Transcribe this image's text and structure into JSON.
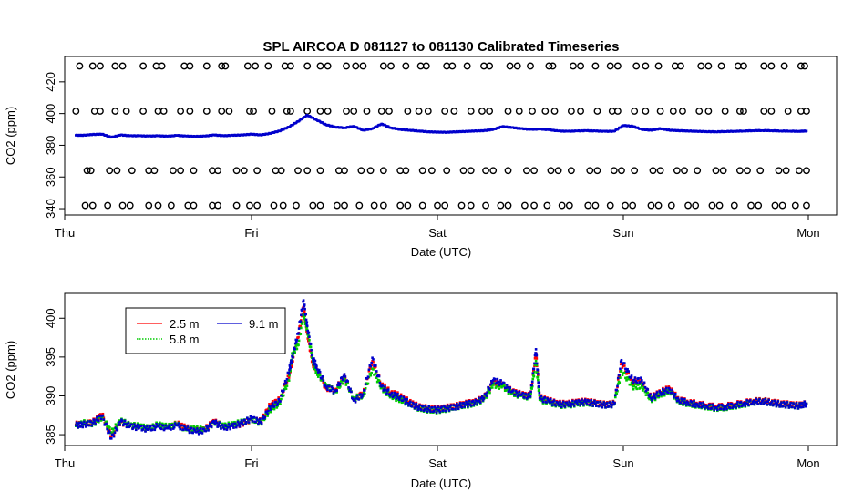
{
  "chart_data": [
    {
      "type": "scatter",
      "title": "SPL   AIRCOA  D    081127  to  081130   Calibrated Timeseries",
      "xlabel": "Date (UTC)",
      "ylabel": "CO2 (ppm)",
      "x_ticks": [
        "Thu",
        "Fri",
        "Sat",
        "Sun",
        "Mon"
      ],
      "y_ticks": [
        340,
        360,
        380,
        400,
        420
      ],
      "y_tick_labels": [
        "340",
        "360",
        "380",
        "400",
        "420"
      ],
      "xlim": [
        0,
        4.2
      ],
      "ylim": [
        336,
        436
      ],
      "grid": false,
      "series": [
        {
          "name": "",
          "color": "#0000cc",
          "x": [
            0.06,
            0.1,
            0.15,
            0.2,
            0.25,
            0.3,
            0.35,
            0.4,
            0.45,
            0.5,
            0.55,
            0.6,
            0.65,
            0.7,
            0.75,
            0.8,
            0.85,
            0.9,
            0.95,
            1.0,
            1.05,
            1.1,
            1.15,
            1.2,
            1.25,
            1.3,
            1.35,
            1.4,
            1.45,
            1.5,
            1.55,
            1.6,
            1.65,
            1.7,
            1.75,
            1.8,
            1.85,
            1.9,
            1.95,
            2.0,
            2.05,
            2.1,
            2.15,
            2.2,
            2.25,
            2.3,
            2.35,
            2.4,
            2.45,
            2.5,
            2.55,
            2.6,
            2.65,
            2.7,
            2.75,
            2.8,
            2.85,
            2.9,
            2.95,
            3.0,
            3.05,
            3.1,
            3.15,
            3.2,
            3.25,
            3.3,
            3.35,
            3.4,
            3.45,
            3.5,
            3.55,
            3.6,
            3.65,
            3.7,
            3.75,
            3.8,
            3.85,
            3.9,
            3.95,
            3.99
          ],
          "y": [
            386.3,
            386.3,
            386.8,
            387.0,
            385.0,
            386.5,
            386.0,
            386.0,
            385.8,
            386.0,
            385.7,
            386.2,
            385.8,
            385.6,
            385.8,
            386.5,
            386.0,
            386.3,
            386.5,
            387.0,
            386.5,
            387.5,
            389.0,
            391.5,
            395.0,
            399.0,
            396.0,
            393.0,
            391.5,
            391.0,
            392.0,
            389.5,
            390.5,
            393.5,
            391.0,
            390.0,
            389.5,
            389.0,
            388.5,
            388.3,
            388.2,
            388.5,
            388.7,
            389.0,
            389.2,
            390.0,
            391.8,
            391.2,
            390.5,
            390.0,
            390.2,
            389.8,
            389.0,
            388.8,
            389.0,
            389.2,
            389.0,
            388.8,
            388.8,
            392.5,
            392.0,
            390.0,
            389.5,
            390.5,
            389.5,
            389.2,
            389.0,
            388.8,
            388.6,
            388.5,
            388.7,
            388.8,
            389.0,
            389.2,
            389.3,
            389.2,
            389.0,
            388.9,
            388.8,
            389.0
          ]
        }
      ],
      "calibration_rows": [
        {
          "y": 430,
          "x": [
            0.08,
            0.15,
            0.19,
            0.27,
            0.31,
            0.42,
            0.49,
            0.52,
            0.64,
            0.67,
            0.76,
            0.84,
            0.86,
            0.98,
            1.02,
            1.09,
            1.18,
            1.21,
            1.3,
            1.37,
            1.41,
            1.51,
            1.56,
            1.6,
            1.71,
            1.75,
            1.83,
            1.91,
            1.94,
            2.05,
            2.08,
            2.16,
            2.25,
            2.28,
            2.39,
            2.43,
            2.5,
            2.6,
            2.62,
            2.73,
            2.77,
            2.85,
            2.93,
            2.97,
            3.07,
            3.12,
            3.19,
            3.28,
            3.31,
            3.42,
            3.46,
            3.53,
            3.62,
            3.65,
            3.76,
            3.8,
            3.87,
            3.96,
            3.98
          ]
        },
        {
          "y": 401.5,
          "x": [
            0.06,
            0.16,
            0.19,
            0.27,
            0.33,
            0.42,
            0.5,
            0.53,
            0.62,
            0.67,
            0.76,
            0.84,
            0.88,
            0.99,
            1.01,
            1.11,
            1.19,
            1.21,
            1.3,
            1.37,
            1.41,
            1.51,
            1.55,
            1.62,
            1.7,
            1.74,
            1.84,
            1.9,
            1.95,
            2.04,
            2.09,
            2.18,
            2.24,
            2.28,
            2.38,
            2.44,
            2.51,
            2.58,
            2.63,
            2.72,
            2.77,
            2.86,
            2.94,
            2.97,
            3.06,
            3.12,
            3.2,
            3.27,
            3.32,
            3.41,
            3.46,
            3.55,
            3.63,
            3.65,
            3.76,
            3.8,
            3.89,
            3.96,
            3.99
          ]
        },
        {
          "y": 364,
          "x": [
            0.12,
            0.14,
            0.24,
            0.28,
            0.36,
            0.45,
            0.48,
            0.58,
            0.62,
            0.69,
            0.79,
            0.82,
            0.92,
            0.96,
            1.03,
            1.13,
            1.16,
            1.25,
            1.3,
            1.37,
            1.47,
            1.5,
            1.59,
            1.64,
            1.71,
            1.8,
            1.83,
            1.92,
            1.97,
            2.05,
            2.14,
            2.18,
            2.26,
            2.3,
            2.38,
            2.48,
            2.52,
            2.61,
            2.65,
            2.72,
            2.82,
            2.86,
            2.95,
            2.99,
            3.06,
            3.16,
            3.2,
            3.29,
            3.33,
            3.4,
            3.5,
            3.54,
            3.63,
            3.67,
            3.74,
            3.84,
            3.88,
            3.95,
            3.99
          ]
        },
        {
          "y": 342,
          "x": [
            0.11,
            0.15,
            0.23,
            0.31,
            0.35,
            0.45,
            0.5,
            0.57,
            0.66,
            0.69,
            0.79,
            0.82,
            0.92,
            0.99,
            1.03,
            1.12,
            1.17,
            1.24,
            1.33,
            1.37,
            1.46,
            1.5,
            1.58,
            1.66,
            1.71,
            1.8,
            1.84,
            1.92,
            2.0,
            2.04,
            2.13,
            2.18,
            2.26,
            2.34,
            2.38,
            2.47,
            2.52,
            2.59,
            2.67,
            2.71,
            2.81,
            2.85,
            2.93,
            3.01,
            3.05,
            3.15,
            3.19,
            3.26,
            3.35,
            3.39,
            3.48,
            3.52,
            3.6,
            3.69,
            3.73,
            3.82,
            3.86,
            3.93,
            3.99
          ]
        }
      ]
    },
    {
      "type": "scatter",
      "title": "",
      "xlabel": "Date (UTC)",
      "ylabel": "CO2 (ppm)",
      "x_ticks": [
        "Thu",
        "Fri",
        "Sat",
        "Sun",
        "Mon"
      ],
      "y_ticks": [
        385,
        390,
        395,
        400
      ],
      "y_tick_labels": [
        "385",
        "390",
        "395",
        "400"
      ],
      "xlim": [
        0,
        4.2
      ],
      "ylim": [
        383.6,
        403.2
      ],
      "grid": false,
      "legend": {
        "placement": "top-left",
        "entries": [
          {
            "name": "2.5 m",
            "color": "#ff0000",
            "style": "solid"
          },
          {
            "name": "5.8 m",
            "color": "#00cc00",
            "style": "dotted"
          },
          {
            "name": "9.1 m",
            "color": "#0000cc",
            "style": "solid"
          }
        ]
      },
      "series": [
        {
          "name": "2.5 m",
          "color": "#ff0000",
          "x": [
            0.06,
            0.1,
            0.15,
            0.2,
            0.25,
            0.3,
            0.35,
            0.4,
            0.45,
            0.5,
            0.55,
            0.6,
            0.65,
            0.7,
            0.75,
            0.8,
            0.85,
            0.9,
            0.95,
            1.0,
            1.05,
            1.1,
            1.15,
            1.2,
            1.22,
            1.25,
            1.28,
            1.3,
            1.33,
            1.35,
            1.4,
            1.45,
            1.5,
            1.55,
            1.6,
            1.65,
            1.7,
            1.75,
            1.8,
            1.85,
            1.9,
            1.95,
            2.0,
            2.05,
            2.1,
            2.15,
            2.2,
            2.25,
            2.3,
            2.35,
            2.4,
            2.45,
            2.5,
            2.53,
            2.55,
            2.6,
            2.65,
            2.7,
            2.75,
            2.8,
            2.85,
            2.9,
            2.95,
            2.99,
            3.05,
            3.1,
            3.15,
            3.2,
            3.25,
            3.3,
            3.35,
            3.4,
            3.45,
            3.5,
            3.55,
            3.6,
            3.65,
            3.7,
            3.75,
            3.8,
            3.85,
            3.9,
            3.95,
            3.99
          ],
          "y": [
            386.3,
            386.4,
            386.6,
            387.6,
            384.8,
            386.6,
            386.2,
            386.0,
            385.8,
            386.2,
            385.9,
            386.4,
            385.9,
            385.5,
            385.7,
            386.7,
            386.0,
            386.2,
            386.4,
            387.0,
            386.7,
            388.8,
            389.5,
            392.5,
            394.5,
            397.5,
            401.5,
            398.0,
            394.0,
            393.5,
            391.0,
            390.8,
            392.6,
            389.5,
            390.4,
            394.5,
            391.5,
            390.4,
            390.0,
            389.2,
            388.6,
            388.4,
            388.3,
            388.5,
            388.7,
            389.0,
            389.2,
            389.8,
            391.8,
            391.5,
            390.6,
            390.2,
            390.0,
            395.5,
            389.8,
            389.4,
            389.0,
            389.0,
            389.2,
            389.3,
            389.1,
            388.9,
            389.0,
            394.2,
            391.8,
            391.8,
            389.8,
            390.5,
            391.0,
            389.5,
            389.2,
            389.0,
            388.8,
            388.6,
            388.7,
            388.9,
            389.1,
            389.3,
            389.4,
            389.2,
            389.0,
            388.9,
            388.8,
            389.0
          ]
        },
        {
          "name": "5.8 m",
          "color": "#00cc00",
          "x": [
            0.06,
            0.1,
            0.15,
            0.2,
            0.25,
            0.3,
            0.35,
            0.4,
            0.45,
            0.5,
            0.55,
            0.6,
            0.65,
            0.7,
            0.75,
            0.8,
            0.85,
            0.9,
            0.95,
            1.0,
            1.05,
            1.1,
            1.15,
            1.2,
            1.22,
            1.25,
            1.28,
            1.3,
            1.33,
            1.35,
            1.4,
            1.45,
            1.5,
            1.55,
            1.6,
            1.65,
            1.7,
            1.75,
            1.8,
            1.85,
            1.9,
            1.95,
            2.0,
            2.05,
            2.1,
            2.15,
            2.2,
            2.25,
            2.3,
            2.35,
            2.4,
            2.45,
            2.5,
            2.53,
            2.55,
            2.6,
            2.65,
            2.7,
            2.75,
            2.8,
            2.85,
            2.9,
            2.95,
            2.99,
            3.05,
            3.1,
            3.15,
            3.2,
            3.25,
            3.3,
            3.35,
            3.4,
            3.45,
            3.5,
            3.55,
            3.6,
            3.65,
            3.7,
            3.75,
            3.8,
            3.85,
            3.9,
            3.95,
            3.99
          ],
          "y": [
            386.1,
            386.5,
            386.4,
            387.2,
            385.3,
            386.8,
            386.2,
            386.1,
            385.8,
            386.3,
            386.0,
            386.3,
            385.6,
            385.8,
            385.6,
            386.5,
            386.1,
            386.3,
            386.6,
            387.0,
            386.5,
            388.2,
            389.0,
            392.0,
            395.5,
            396.5,
            400.5,
            398.5,
            394.5,
            393.0,
            391.5,
            390.5,
            392.2,
            389.7,
            390.0,
            393.5,
            391.0,
            390.0,
            389.5,
            389.0,
            388.4,
            388.2,
            388.1,
            388.3,
            388.6,
            388.8,
            389.0,
            389.6,
            391.4,
            391.2,
            390.3,
            390.0,
            389.8,
            394.5,
            389.5,
            389.2,
            388.8,
            388.8,
            389.0,
            389.1,
            389.0,
            388.8,
            388.9,
            393.2,
            391.2,
            391.2,
            389.5,
            390.2,
            390.6,
            389.3,
            389.0,
            388.8,
            388.6,
            388.4,
            388.5,
            388.7,
            388.9,
            389.2,
            389.3,
            389.1,
            388.9,
            388.8,
            388.7,
            389.0
          ]
        },
        {
          "name": "9.1 m",
          "color": "#0000cc",
          "x": [
            0.06,
            0.1,
            0.15,
            0.2,
            0.25,
            0.3,
            0.35,
            0.4,
            0.45,
            0.5,
            0.55,
            0.6,
            0.65,
            0.7,
            0.75,
            0.8,
            0.85,
            0.9,
            0.95,
            1.0,
            1.05,
            1.1,
            1.15,
            1.2,
            1.22,
            1.25,
            1.28,
            1.3,
            1.33,
            1.35,
            1.4,
            1.45,
            1.5,
            1.55,
            1.6,
            1.65,
            1.7,
            1.75,
            1.8,
            1.85,
            1.9,
            1.95,
            2.0,
            2.05,
            2.1,
            2.15,
            2.2,
            2.25,
            2.3,
            2.35,
            2.4,
            2.45,
            2.5,
            2.53,
            2.55,
            2.6,
            2.65,
            2.7,
            2.75,
            2.8,
            2.85,
            2.9,
            2.95,
            2.99,
            3.05,
            3.1,
            3.15,
            3.2,
            3.25,
            3.3,
            3.35,
            3.4,
            3.45,
            3.5,
            3.55,
            3.6,
            3.65,
            3.7,
            3.75,
            3.8,
            3.85,
            3.9,
            3.95,
            3.99
          ],
          "y": [
            386.2,
            386.3,
            386.5,
            387.4,
            384.5,
            386.7,
            386.1,
            385.9,
            385.7,
            386.1,
            385.8,
            386.2,
            385.7,
            385.4,
            385.5,
            386.6,
            385.9,
            386.1,
            386.5,
            387.1,
            386.6,
            388.5,
            389.3,
            393.0,
            395.0,
            398.0,
            402.3,
            399.0,
            394.8,
            393.8,
            391.2,
            390.6,
            392.8,
            389.4,
            390.2,
            394.9,
            391.2,
            390.2,
            389.8,
            389.0,
            388.5,
            388.3,
            388.2,
            388.4,
            388.6,
            388.9,
            389.1,
            389.7,
            392.0,
            391.6,
            390.5,
            390.1,
            389.9,
            396.0,
            389.7,
            389.3,
            388.9,
            388.9,
            389.1,
            389.2,
            389.0,
            388.8,
            388.9,
            394.6,
            392.0,
            392.0,
            389.7,
            390.4,
            390.8,
            389.4,
            389.1,
            388.9,
            388.7,
            388.5,
            388.6,
            388.8,
            389.0,
            389.2,
            389.3,
            389.1,
            388.9,
            388.8,
            388.7,
            389.0
          ]
        }
      ]
    }
  ]
}
